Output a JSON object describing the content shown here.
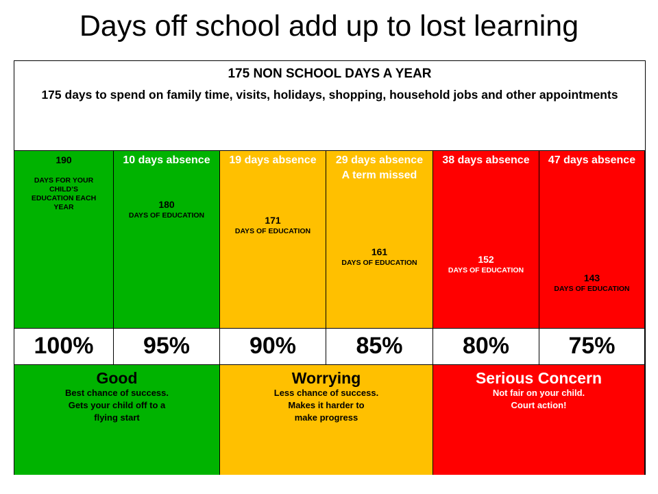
{
  "title": "Days off school add up to lost learning",
  "header": {
    "heading": "175 NON SCHOOL DAYS A YEAR",
    "text": "175 days to spend on family time, visits, holidays, shopping, household jobs and other appointments"
  },
  "columns": [
    {
      "days": 190,
      "days_label": "DAYS FOR YOUR CHILD’S EDUCATION  EACH YEAR"
    },
    {
      "absence": "10 days absence",
      "days": 180,
      "days_label": "DAYS OF EDUCATION"
    },
    {
      "absence": "19 days absence",
      "days": 171,
      "days_label": "DAYS OF EDUCATION"
    },
    {
      "absence": "29 days absence",
      "note": "A term missed",
      "days": 161,
      "days_label": "DAYS OF EDUCATION"
    },
    {
      "absence": "38 days absence",
      "days": 152,
      "days_label": "DAYS OF EDUCATION"
    },
    {
      "absence": "47 days absence",
      "days": 143,
      "days_label": "DAYS OF EDUCATION"
    }
  ],
  "percentages": [
    "100%",
    "95%",
    "90%",
    "85%",
    "80%",
    "75%"
  ],
  "ratings": [
    {
      "label": "Good",
      "lines": [
        "Best chance of success.",
        "Gets your child off to a",
        "flying start"
      ]
    },
    {
      "label": "Worrying",
      "lines": [
        "Less chance of success.",
        "Makes it harder to",
        "make progress"
      ]
    },
    {
      "label": "Serious Concern",
      "lines": [
        "Not fair on your child.",
        "Court action!"
      ]
    }
  ]
}
